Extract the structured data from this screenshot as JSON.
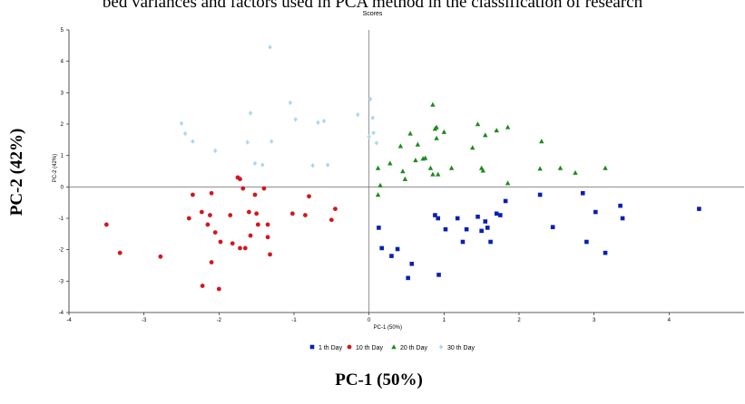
{
  "caption": "bed variances and factors used in PCA method in the classification of research",
  "big_ylabel": "PC-2 (42%)",
  "big_xlabel": "PC-1 (50%)",
  "chart_data": {
    "type": "scatter",
    "title": "Scores",
    "xlabel": "PC-1 (50%)",
    "ylabel": "PC-2 (42%)",
    "xlim": [
      -4,
      5
    ],
    "ylim": [
      -4,
      5
    ],
    "xticks": [
      "-4",
      "-3",
      "-2",
      "-1",
      "0",
      "1",
      "2",
      "3",
      "4"
    ],
    "yticks": [
      "5",
      "4",
      "3",
      "2",
      "1",
      "0",
      "-1",
      "-2",
      "-3",
      "-4"
    ],
    "grid": false,
    "legend_position": "bottom",
    "series": [
      {
        "name": "1 th Day",
        "marker": "square",
        "color": "#0b1fb3",
        "points": [
          [
            0.17,
            -1.95
          ],
          [
            0.13,
            -1.3
          ],
          [
            0.3,
            -2.2
          ],
          [
            0.38,
            -1.98
          ],
          [
            0.52,
            -2.9
          ],
          [
            0.57,
            -2.45
          ],
          [
            0.88,
            -0.9
          ],
          [
            0.92,
            -1.0
          ],
          [
            0.93,
            -2.8
          ],
          [
            1.02,
            -1.35
          ],
          [
            1.18,
            -1.0
          ],
          [
            1.25,
            -1.75
          ],
          [
            1.3,
            -1.35
          ],
          [
            1.5,
            -1.4
          ],
          [
            1.55,
            -1.1
          ],
          [
            1.58,
            -1.3
          ],
          [
            1.62,
            -1.75
          ],
          [
            1.7,
            -0.85
          ],
          [
            1.75,
            -0.9
          ],
          [
            1.82,
            -0.45
          ],
          [
            1.45,
            -0.95
          ],
          [
            2.28,
            -0.25
          ],
          [
            2.45,
            -1.28
          ],
          [
            2.85,
            -0.2
          ],
          [
            2.9,
            -1.75
          ],
          [
            3.02,
            -0.8
          ],
          [
            3.15,
            -2.1
          ],
          [
            3.35,
            -0.6
          ],
          [
            3.38,
            -1.0
          ],
          [
            4.4,
            -0.7
          ]
        ]
      },
      {
        "name": "10 th Day",
        "marker": "circle",
        "color": "#d4161c",
        "points": [
          [
            -3.5,
            -1.2
          ],
          [
            -3.32,
            -2.1
          ],
          [
            -2.78,
            -2.22
          ],
          [
            -2.4,
            -1.0
          ],
          [
            -2.35,
            -0.25
          ],
          [
            -2.23,
            -0.8
          ],
          [
            -2.22,
            -3.15
          ],
          [
            -2.15,
            -1.2
          ],
          [
            -2.1,
            -0.2
          ],
          [
            -2.12,
            -0.9
          ],
          [
            -2.1,
            -2.4
          ],
          [
            -2.05,
            -1.45
          ],
          [
            -1.98,
            -1.75
          ],
          [
            -2.0,
            -3.25
          ],
          [
            -1.85,
            -0.9
          ],
          [
            -1.82,
            -1.8
          ],
          [
            -1.75,
            0.3
          ],
          [
            -1.72,
            0.25
          ],
          [
            -1.72,
            -1.95
          ],
          [
            -1.68,
            -0.05
          ],
          [
            -1.65,
            -1.95
          ],
          [
            -1.6,
            -0.8
          ],
          [
            -1.58,
            -1.55
          ],
          [
            -1.52,
            -0.25
          ],
          [
            -1.5,
            -0.85
          ],
          [
            -1.48,
            -1.2
          ],
          [
            -1.4,
            -0.05
          ],
          [
            -1.35,
            -1.6
          ],
          [
            -1.35,
            -1.2
          ],
          [
            -1.32,
            -2.15
          ],
          [
            -1.02,
            -0.85
          ],
          [
            -0.85,
            -0.9
          ],
          [
            -0.8,
            -0.3
          ],
          [
            -0.5,
            -1.05
          ],
          [
            -0.45,
            -0.7
          ]
        ]
      },
      {
        "name": "20 th Day",
        "marker": "triangle",
        "color": "#1c8a1c",
        "points": [
          [
            0.12,
            0.6
          ],
          [
            0.15,
            0.05
          ],
          [
            0.12,
            -0.25
          ],
          [
            0.28,
            0.75
          ],
          [
            0.42,
            1.3
          ],
          [
            0.45,
            0.5
          ],
          [
            0.48,
            0.25
          ],
          [
            0.55,
            1.7
          ],
          [
            0.62,
            0.85
          ],
          [
            0.65,
            1.35
          ],
          [
            0.72,
            0.9
          ],
          [
            0.75,
            0.92
          ],
          [
            0.82,
            0.6
          ],
          [
            0.85,
            2.62
          ],
          [
            0.85,
            0.4
          ],
          [
            0.88,
            1.85
          ],
          [
            0.9,
            1.9
          ],
          [
            0.9,
            1.55
          ],
          [
            0.92,
            0.4
          ],
          [
            1.0,
            1.75
          ],
          [
            1.1,
            0.6
          ],
          [
            1.38,
            1.25
          ],
          [
            1.45,
            2.0
          ],
          [
            1.5,
            0.6
          ],
          [
            1.52,
            0.52
          ],
          [
            1.55,
            1.65
          ],
          [
            1.7,
            1.8
          ],
          [
            1.85,
            1.9
          ],
          [
            1.85,
            0.12
          ],
          [
            2.28,
            0.58
          ],
          [
            2.3,
            1.45
          ],
          [
            2.55,
            0.6
          ],
          [
            2.75,
            0.45
          ],
          [
            3.15,
            0.6
          ]
        ]
      },
      {
        "name": "30 th Day",
        "marker": "diamond",
        "color": "#a9d8ea",
        "points": [
          [
            -2.5,
            2.02
          ],
          [
            -2.45,
            1.7
          ],
          [
            -2.35,
            1.45
          ],
          [
            -2.05,
            1.15
          ],
          [
            -1.62,
            1.42
          ],
          [
            -1.58,
            2.35
          ],
          [
            -1.52,
            0.75
          ],
          [
            -1.42,
            0.7
          ],
          [
            -1.32,
            4.45
          ],
          [
            -1.3,
            1.45
          ],
          [
            -1.05,
            2.68
          ],
          [
            -0.98,
            2.15
          ],
          [
            -0.75,
            0.68
          ],
          [
            -0.68,
            2.05
          ],
          [
            -0.6,
            2.1
          ],
          [
            -0.55,
            0.7
          ],
          [
            -0.15,
            2.3
          ],
          [
            0.0,
            1.6
          ],
          [
            0.02,
            2.8
          ],
          [
            0.05,
            2.2
          ],
          [
            0.06,
            1.72
          ],
          [
            0.1,
            1.4
          ]
        ]
      }
    ]
  }
}
